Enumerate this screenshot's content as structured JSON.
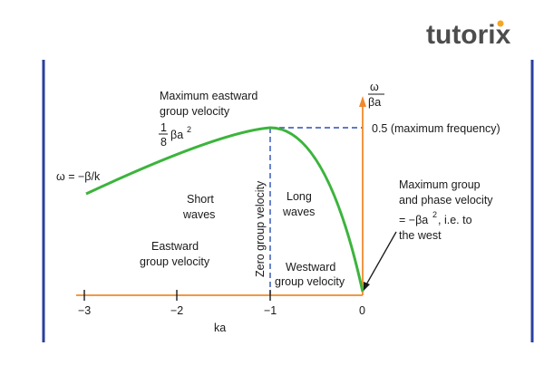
{
  "logo": {
    "text": "tutorix",
    "accent_color": "#f5a623"
  },
  "colors": {
    "curve": "#3cb43c",
    "axis": "#f08a2c",
    "border": "#2b3f9e",
    "dashed": "#2b4fb5",
    "arrow": "#1a1a1a"
  },
  "axes": {
    "xlabel": "ka",
    "ylabel_num": "ω",
    "ylabel_den": "βa",
    "xticks": [
      "−3",
      "−2",
      "−1",
      "0"
    ],
    "xrange": [
      -3,
      0
    ]
  },
  "annotations": {
    "max_east_line1": "Maximum eastward",
    "max_east_line2": "group velocity",
    "frac_num": "1",
    "frac_den": "8",
    "frac_beta": "βa",
    "frac_exp": "2",
    "omega_eq": "ω = −β/k",
    "max_freq": "0.5 (maximum frequency)",
    "short_1": "Short",
    "short_2": "waves",
    "long_1": "Long",
    "long_2": "waves",
    "zero_group": "Zero group velocity",
    "east_1": "Eastward",
    "east_2": "group velocity",
    "west_1": "Westward",
    "west_2": "group velocity",
    "maxgp_1": "Maximum group",
    "maxgp_2": "and phase velocity",
    "maxgp_3a": "= −βa",
    "maxgp_3exp": "2",
    "maxgp_3b": ", i.e. to",
    "maxgp_4": "the west"
  }
}
